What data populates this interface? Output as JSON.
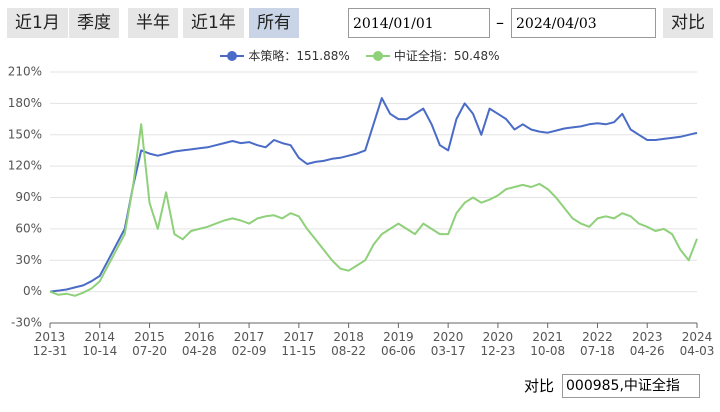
{
  "toolbar": {
    "buttons": [
      "近1月",
      "季度",
      "半年",
      "近1年",
      "所有"
    ],
    "selected_index": 4
  },
  "date_range": {
    "start": "2014/01/01",
    "separator": "–",
    "end": "2024/04/03"
  },
  "compare_button": "对比",
  "footer": {
    "label": "对比",
    "input": "000985,中证全指"
  },
  "chart_data": {
    "type": "line",
    "categories": [
      "2013\n12-31",
      null,
      null,
      null,
      null,
      null,
      "2014\n10-14",
      null,
      null,
      null,
      null,
      null,
      "2015\n07-20",
      null,
      null,
      null,
      null,
      null,
      "2016\n04-28",
      null,
      null,
      null,
      null,
      null,
      "2017\n02-09",
      null,
      null,
      null,
      null,
      null,
      "2017\n11-15",
      null,
      null,
      null,
      null,
      null,
      "2018\n08-22",
      null,
      null,
      null,
      null,
      null,
      "2019\n06-06",
      null,
      null,
      null,
      null,
      null,
      "2020\n03-17",
      null,
      null,
      null,
      null,
      null,
      "2020\n12-23",
      null,
      null,
      null,
      null,
      null,
      "2021\n10-08",
      null,
      null,
      null,
      null,
      null,
      "2022\n07-18",
      null,
      null,
      null,
      null,
      null,
      "2023\n04-26",
      null,
      null,
      null,
      null,
      null,
      "2024\n04-03"
    ],
    "series": [
      {
        "name": "本策略：151.88%",
        "color": "#4a6cc6",
        "values": [
          0,
          1,
          2,
          4,
          6,
          10,
          15,
          30,
          45,
          60,
          100,
          135,
          132,
          130,
          132,
          134,
          135,
          136,
          137,
          138,
          140,
          142,
          144,
          142,
          143,
          140,
          138,
          145,
          142,
          140,
          128,
          122,
          124,
          125,
          127,
          128,
          130,
          132,
          135,
          160,
          185,
          170,
          165,
          165,
          170,
          175,
          160,
          140,
          135,
          165,
          180,
          170,
          150,
          175,
          170,
          165,
          155,
          160,
          155,
          153,
          152,
          154,
          156,
          157,
          158,
          160,
          161,
          160,
          162,
          170,
          155,
          150,
          145,
          145,
          146,
          147,
          148,
          150,
          151.88
        ]
      },
      {
        "name": "中证全指：50.48%",
        "color": "#8fd07a",
        "values": [
          0,
          -3,
          -2,
          -4,
          -1,
          3,
          10,
          25,
          40,
          55,
          100,
          160,
          85,
          60,
          95,
          55,
          50,
          58,
          60,
          62,
          65,
          68,
          70,
          68,
          65,
          70,
          72,
          73,
          70,
          75,
          72,
          60,
          50,
          40,
          30,
          22,
          20,
          25,
          30,
          45,
          55,
          60,
          65,
          60,
          55,
          65,
          60,
          55,
          55,
          75,
          85,
          90,
          85,
          88,
          92,
          98,
          100,
          102,
          100,
          103,
          98,
          90,
          80,
          70,
          65,
          62,
          70,
          72,
          70,
          75,
          72,
          65,
          62,
          58,
          60,
          55,
          40,
          30,
          50.48
        ]
      }
    ],
    "ylim": [
      -30,
      210
    ],
    "yticks": [
      {
        "value": -30,
        "label": "-30%"
      },
      {
        "value": 0,
        "label": "0%"
      },
      {
        "value": 30,
        "label": "30%"
      },
      {
        "value": 60,
        "label": "60%"
      },
      {
        "value": 90,
        "label": "90%"
      },
      {
        "value": 120,
        "label": "120%"
      },
      {
        "value": 150,
        "label": "150%"
      },
      {
        "value": 180,
        "label": "180%"
      },
      {
        "value": 210,
        "label": "210%"
      }
    ],
    "grid": true
  }
}
